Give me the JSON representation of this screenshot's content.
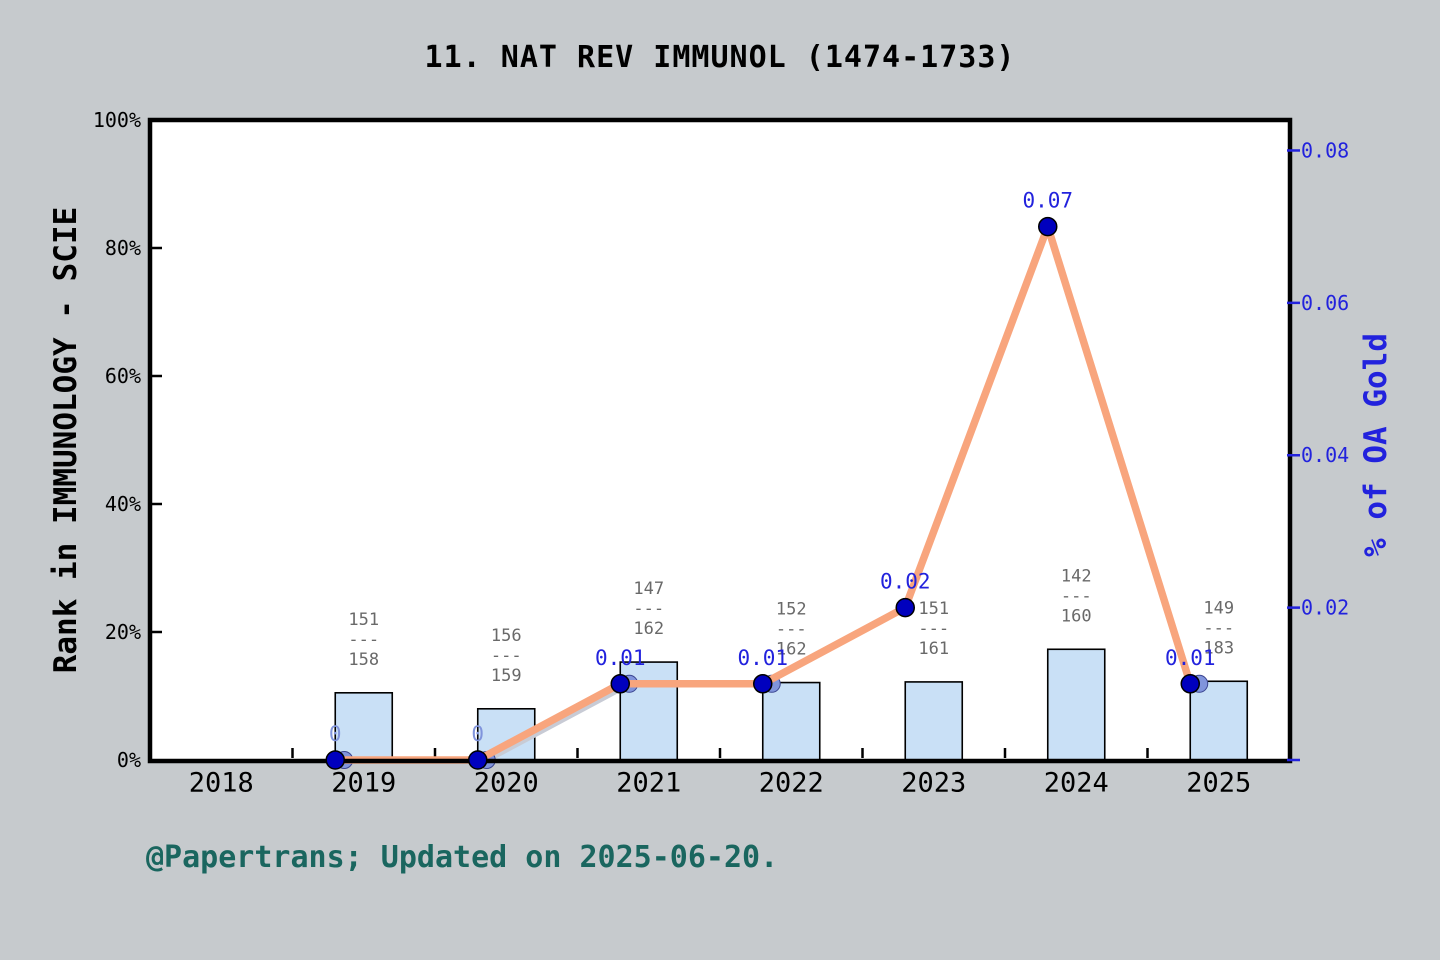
{
  "title": "11. NAT REV IMMUNOL (1474-1733)",
  "footer": "@Papertrans; Updated on 2025-06-20.",
  "colors": {
    "background": "#C6CACD",
    "plot_bg": "#FFFFFF",
    "frame": "#000000",
    "bar_fill": "#C9E0F6",
    "bar_edge": "#000000",
    "oa_line_orange": "#F8A57D",
    "shadow_line_gray": "#C8CBD5",
    "marker_navy": "#0000BE",
    "marker_light_blue": "#8094DC",
    "axis_blue": "#2222DD",
    "fraction_gray": "#696969",
    "footer_teal": "#1A665F",
    "text_black": "#000000"
  },
  "chart_data": {
    "type": "combo-bar-line",
    "categories": [
      "2018",
      "2019",
      "2020",
      "2021",
      "2022",
      "2023",
      "2024",
      "2025"
    ],
    "left_axis": {
      "label": "Rank in IMMUNOLOGY - SCIE",
      "tick_labels": [
        "0%",
        "20%",
        "40%",
        "60%",
        "80%",
        "100%"
      ],
      "tick_values": [
        0,
        20,
        40,
        60,
        80,
        100
      ],
      "range": [
        0,
        100
      ],
      "grid": false
    },
    "right_axis": {
      "label": "% of OA Gold",
      "tick_labels": [
        "0.02",
        "0.04",
        "0.06",
        "0.08"
      ],
      "tick_values": [
        0.02,
        0.04,
        0.06,
        0.08
      ],
      "zero_tick": 0,
      "max": 0.084
    },
    "bars": [
      {
        "year": "2019",
        "height_pct": 10.5,
        "fraction_top": "151",
        "fraction_bottom": "158"
      },
      {
        "year": "2020",
        "height_pct": 8.0,
        "fraction_top": "156",
        "fraction_bottom": "159"
      },
      {
        "year": "2021",
        "height_pct": 15.3,
        "fraction_top": "147",
        "fraction_bottom": "162"
      },
      {
        "year": "2022",
        "height_pct": 12.1,
        "fraction_top": "152",
        "fraction_bottom": "162"
      },
      {
        "year": "2023",
        "height_pct": 12.2,
        "fraction_top": "151",
        "fraction_bottom": "161"
      },
      {
        "year": "2024",
        "height_pct": 17.3,
        "fraction_top": "142",
        "fraction_bottom": "160"
      },
      {
        "year": "2025",
        "height_pct": 12.3,
        "fraction_top": "149",
        "fraction_bottom": "183"
      }
    ],
    "fraction_dash": "---",
    "oa_line": {
      "name": "% of OA Gold",
      "years": [
        "2019",
        "2020",
        "2021",
        "2022",
        "2023",
        "2024",
        "2025"
      ],
      "values": [
        0,
        0,
        0.01,
        0.01,
        0.02,
        0.07,
        0.01
      ],
      "labels": [
        "0",
        "0",
        "0.01",
        "0.01",
        "0.02",
        "0.07",
        "0.01"
      ],
      "label_is_light": [
        true,
        true,
        false,
        false,
        false,
        false,
        false
      ]
    },
    "shadow_line": {
      "years": [
        "2019",
        "2020",
        "2021",
        "2022"
      ],
      "values": [
        0,
        0,
        0.01,
        0.01
      ],
      "marker_years": [
        "2019",
        "2020",
        "2021",
        "2022",
        "2025"
      ],
      "marker_values": [
        0,
        0,
        0.01,
        0.01,
        0.01
      ]
    }
  }
}
